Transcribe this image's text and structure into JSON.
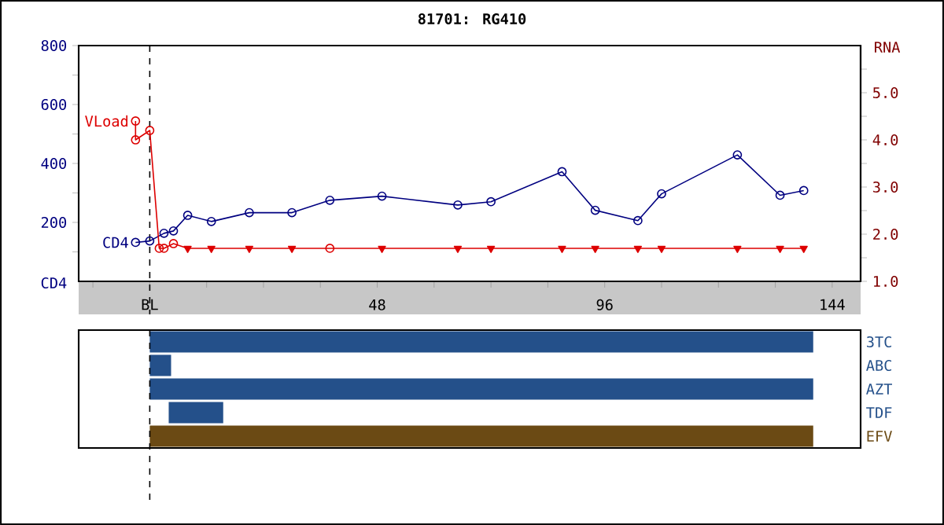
{
  "chart_data": [
    {
      "type": "line",
      "title": "81701: RG410",
      "ylabel": "CD4",
      "y2label": "RNA",
      "xlim": [
        -15,
        150
      ],
      "xticks": [
        {
          "value": -12,
          "label": null
        },
        {
          "value": 0,
          "label": "BL"
        },
        {
          "value": 12,
          "label": null
        },
        {
          "value": 24,
          "label": null
        },
        {
          "value": 36,
          "label": null
        },
        48,
        {
          "value": 60,
          "label": null
        },
        {
          "value": 72,
          "label": null
        },
        {
          "value": 84,
          "label": null
        },
        96,
        {
          "value": 108,
          "label": null
        },
        {
          "value": 120,
          "label": null
        },
        {
          "value": 132,
          "label": null
        },
        144
      ],
      "ylim": [
        0,
        800
      ],
      "yticks": [
        {
          "value": 100,
          "label": null
        },
        200,
        {
          "value": 300,
          "label": null
        },
        400,
        {
          "value": 500,
          "label": null
        },
        600,
        {
          "value": 700,
          "label": null
        },
        800
      ],
      "y2lim": [
        1,
        6
      ],
      "y2ticks": [
        {
          "value": 1,
          "label": "1.0"
        },
        {
          "value": 1.5,
          "label": null
        },
        {
          "value": 2,
          "label": "2.0"
        },
        {
          "value": 2.5,
          "label": null
        },
        {
          "value": 3,
          "label": "3.0"
        },
        {
          "value": 3.5,
          "label": null
        },
        {
          "value": 4,
          "label": "4.0"
        },
        {
          "value": 4.5,
          "label": null
        },
        {
          "value": 5,
          "label": "5.0"
        },
        {
          "value": 5.5,
          "label": null
        }
      ],
      "ref_lines": [
        {
          "axis": "x",
          "value": 0,
          "color": "#000000",
          "line_style": "dashed"
        }
      ],
      "series": [
        {
          "name": "CD4",
          "color": "#000080",
          "marker": "circle",
          "x": [
            -3,
            0,
            3,
            5,
            8,
            13,
            21,
            30,
            38,
            49,
            65,
            72,
            87,
            94,
            103,
            108,
            124,
            133,
            138
          ],
          "values": [
            132,
            137,
            163,
            171,
            224,
            203,
            233,
            233,
            275,
            289,
            259,
            270,
            372,
            241,
            206,
            297,
            429,
            292,
            308
          ]
        },
        {
          "name": "VLoad",
          "color": "#dd0000",
          "axis": "y2",
          "marker": "none",
          "x": [
            -3,
            -3,
            0,
            2,
            3,
            5,
            8,
            13,
            21,
            30,
            38,
            49,
            65,
            72,
            87,
            94,
            103,
            108,
            124,
            133,
            138
          ],
          "values": [
            4.4,
            4.0,
            4.2,
            1.7,
            1.7,
            1.8,
            1.7,
            1.7,
            1.7,
            1.7,
            1.7,
            1.7,
            1.7,
            1.7,
            1.7,
            1.7,
            1.7,
            1.7,
            1.7,
            1.7,
            1.7
          ]
        },
        {
          "type": "scatter",
          "color": "#dd0000",
          "axis": "y2",
          "marker": "circle",
          "x": [
            -3,
            -3,
            0,
            2,
            3,
            5,
            38
          ],
          "values": [
            4.4,
            4.0,
            4.2,
            1.7,
            1.7,
            1.8,
            1.7
          ]
        },
        {
          "type": "scatter",
          "color": "#dd0000",
          "axis": "y2",
          "marker": "triangle",
          "x": [
            8,
            13,
            21,
            30,
            49,
            65,
            72,
            87,
            94,
            103,
            108,
            124,
            133,
            138
          ],
          "values": [
            1.7,
            1.7,
            1.7,
            1.7,
            1.7,
            1.7,
            1.7,
            1.7,
            1.7,
            1.7,
            1.7,
            1.7,
            1.7,
            1.7
          ]
        }
      ]
    },
    {
      "type": "bar",
      "orientation": "horizontal",
      "categories": [
        "3TC",
        "ABC",
        "AZT",
        "TDF",
        "EFV"
      ],
      "base": [
        0,
        0,
        0,
        4,
        0
      ],
      "values": [
        140,
        4.5,
        140,
        11.5,
        140
      ],
      "colors": [
        "#24508a",
        "#24508a",
        "#24508a",
        "#24508a",
        "#6b4a14"
      ],
      "xlim": [
        -15,
        150
      ],
      "tick_labels": "y",
      "ref_lines": [
        {
          "axis": "x",
          "value": 0,
          "color": "#000000",
          "line_style": "dashed"
        }
      ]
    }
  ]
}
